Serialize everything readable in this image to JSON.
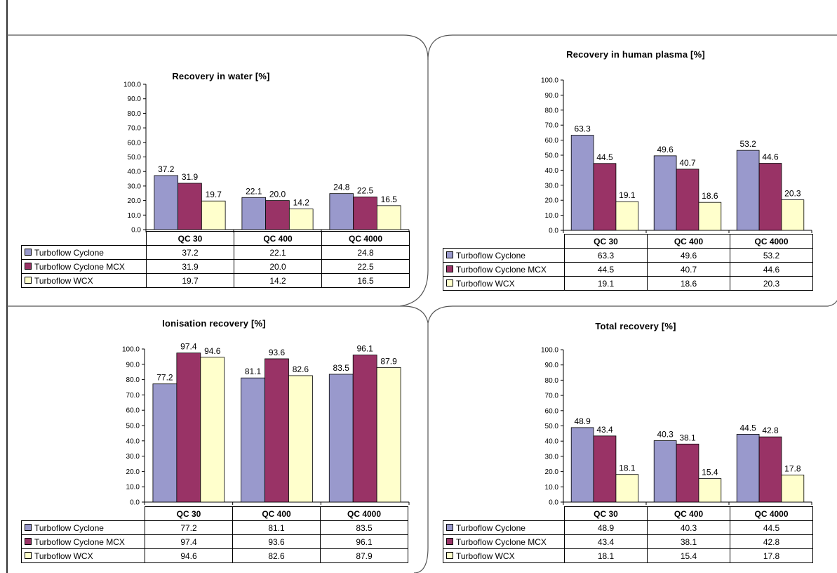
{
  "colors": {
    "series": [
      "#9999CC",
      "#993366",
      "#FFFFCC"
    ]
  },
  "chart_data": [
    {
      "type": "bar",
      "title": "Recovery in water [%]",
      "categories": [
        "QC 30",
        "QC 400",
        "QC 4000"
      ],
      "ylim": [
        0,
        100
      ],
      "yticks": [
        "100.0",
        "90.0",
        "80.0",
        "70.0",
        "60.0",
        "50.0",
        "40.0",
        "30.0",
        "20.0",
        "10.0",
        "0.0"
      ],
      "series": [
        {
          "name": "Turboflow Cyclone",
          "values": [
            37.2,
            22.1,
            24.8
          ],
          "labels": [
            "37.2",
            "22.1",
            "24.8"
          ]
        },
        {
          "name": "Turboflow Cyclone MCX",
          "values": [
            31.9,
            20.0,
            22.5
          ],
          "labels": [
            "31.9",
            "20.0",
            "22.5"
          ]
        },
        {
          "name": "Turboflow WCX",
          "values": [
            19.7,
            14.2,
            16.5
          ],
          "labels": [
            "19.7",
            "14.2",
            "16.5"
          ]
        }
      ]
    },
    {
      "type": "bar",
      "title": "Recovery in human plasma [%]",
      "categories": [
        "QC 30",
        "QC 400",
        "QC 4000"
      ],
      "ylim": [
        0,
        100
      ],
      "yticks": [
        "100.0",
        "90.0",
        "80.0",
        "70.0",
        "60.0",
        "50.0",
        "40.0",
        "30.0",
        "20.0",
        "10.0",
        "0.0"
      ],
      "series": [
        {
          "name": "Turboflow Cyclone",
          "values": [
            63.3,
            49.6,
            53.2
          ],
          "labels": [
            "63.3",
            "49.6",
            "53.2"
          ]
        },
        {
          "name": "Turboflow Cyclone MCX",
          "values": [
            44.5,
            40.7,
            44.6
          ],
          "labels": [
            "44.5",
            "40.7",
            "44.6"
          ]
        },
        {
          "name": "Turboflow WCX",
          "values": [
            19.1,
            18.6,
            20.3
          ],
          "labels": [
            "19.1",
            "18.6",
            "20.3"
          ]
        }
      ]
    },
    {
      "type": "bar",
      "title": "Ionisation recovery [%]",
      "categories": [
        "QC 30",
        "QC 400",
        "QC 4000"
      ],
      "ylim": [
        0,
        100
      ],
      "yticks": [
        "100.0",
        "90.0",
        "80.0",
        "70.0",
        "60.0",
        "50.0",
        "40.0",
        "30.0",
        "20.0",
        "10.0",
        "0.0"
      ],
      "series": [
        {
          "name": "Turboflow Cyclone",
          "values": [
            77.2,
            81.1,
            83.5
          ],
          "labels": [
            "77.2",
            "81.1",
            "83.5"
          ]
        },
        {
          "name": "Turboflow Cyclone MCX",
          "values": [
            97.4,
            93.6,
            96.1
          ],
          "labels": [
            "97.4",
            "93.6",
            "96.1"
          ]
        },
        {
          "name": "Turboflow WCX",
          "values": [
            94.6,
            82.6,
            87.9
          ],
          "labels": [
            "94.6",
            "82.6",
            "87.9"
          ]
        }
      ]
    },
    {
      "type": "bar",
      "title": "Total recovery [%]",
      "categories": [
        "QC 30",
        "QC 400",
        "QC 4000"
      ],
      "ylim": [
        0,
        100
      ],
      "yticks": [
        "100.0",
        "90.0",
        "80.0",
        "70.0",
        "60.0",
        "50.0",
        "40.0",
        "30.0",
        "20.0",
        "10.0",
        "0.0"
      ],
      "series": [
        {
          "name": "Turboflow Cyclone",
          "values": [
            48.9,
            40.3,
            44.5
          ],
          "labels": [
            "48.9",
            "40.3",
            "44.5"
          ]
        },
        {
          "name": "Turboflow Cyclone MCX",
          "values": [
            43.4,
            38.1,
            42.8
          ],
          "labels": [
            "43.4",
            "38.1",
            "42.8"
          ]
        },
        {
          "name": "Turboflow WCX",
          "values": [
            18.1,
            15.4,
            17.8
          ],
          "labels": [
            "18.1",
            "15.4",
            "17.8"
          ]
        }
      ]
    }
  ]
}
